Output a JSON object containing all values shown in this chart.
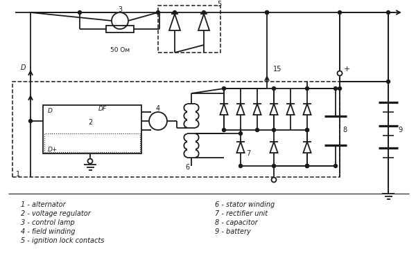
{
  "bg_color": "#ffffff",
  "line_color": "#1a1a1a",
  "lw": 1.3,
  "dlw": 1.1,
  "fig_w": 6.0,
  "fig_h": 3.89,
  "legend_left": [
    "1 - alternator",
    "2 - voltage regulator",
    "3 - control lamp",
    "4 - field winding",
    "5 - ignition lock contacts"
  ],
  "legend_right": [
    "6 - stator winding",
    "7 - rectifier unit",
    "8 - capacitor",
    "9 - battery"
  ]
}
